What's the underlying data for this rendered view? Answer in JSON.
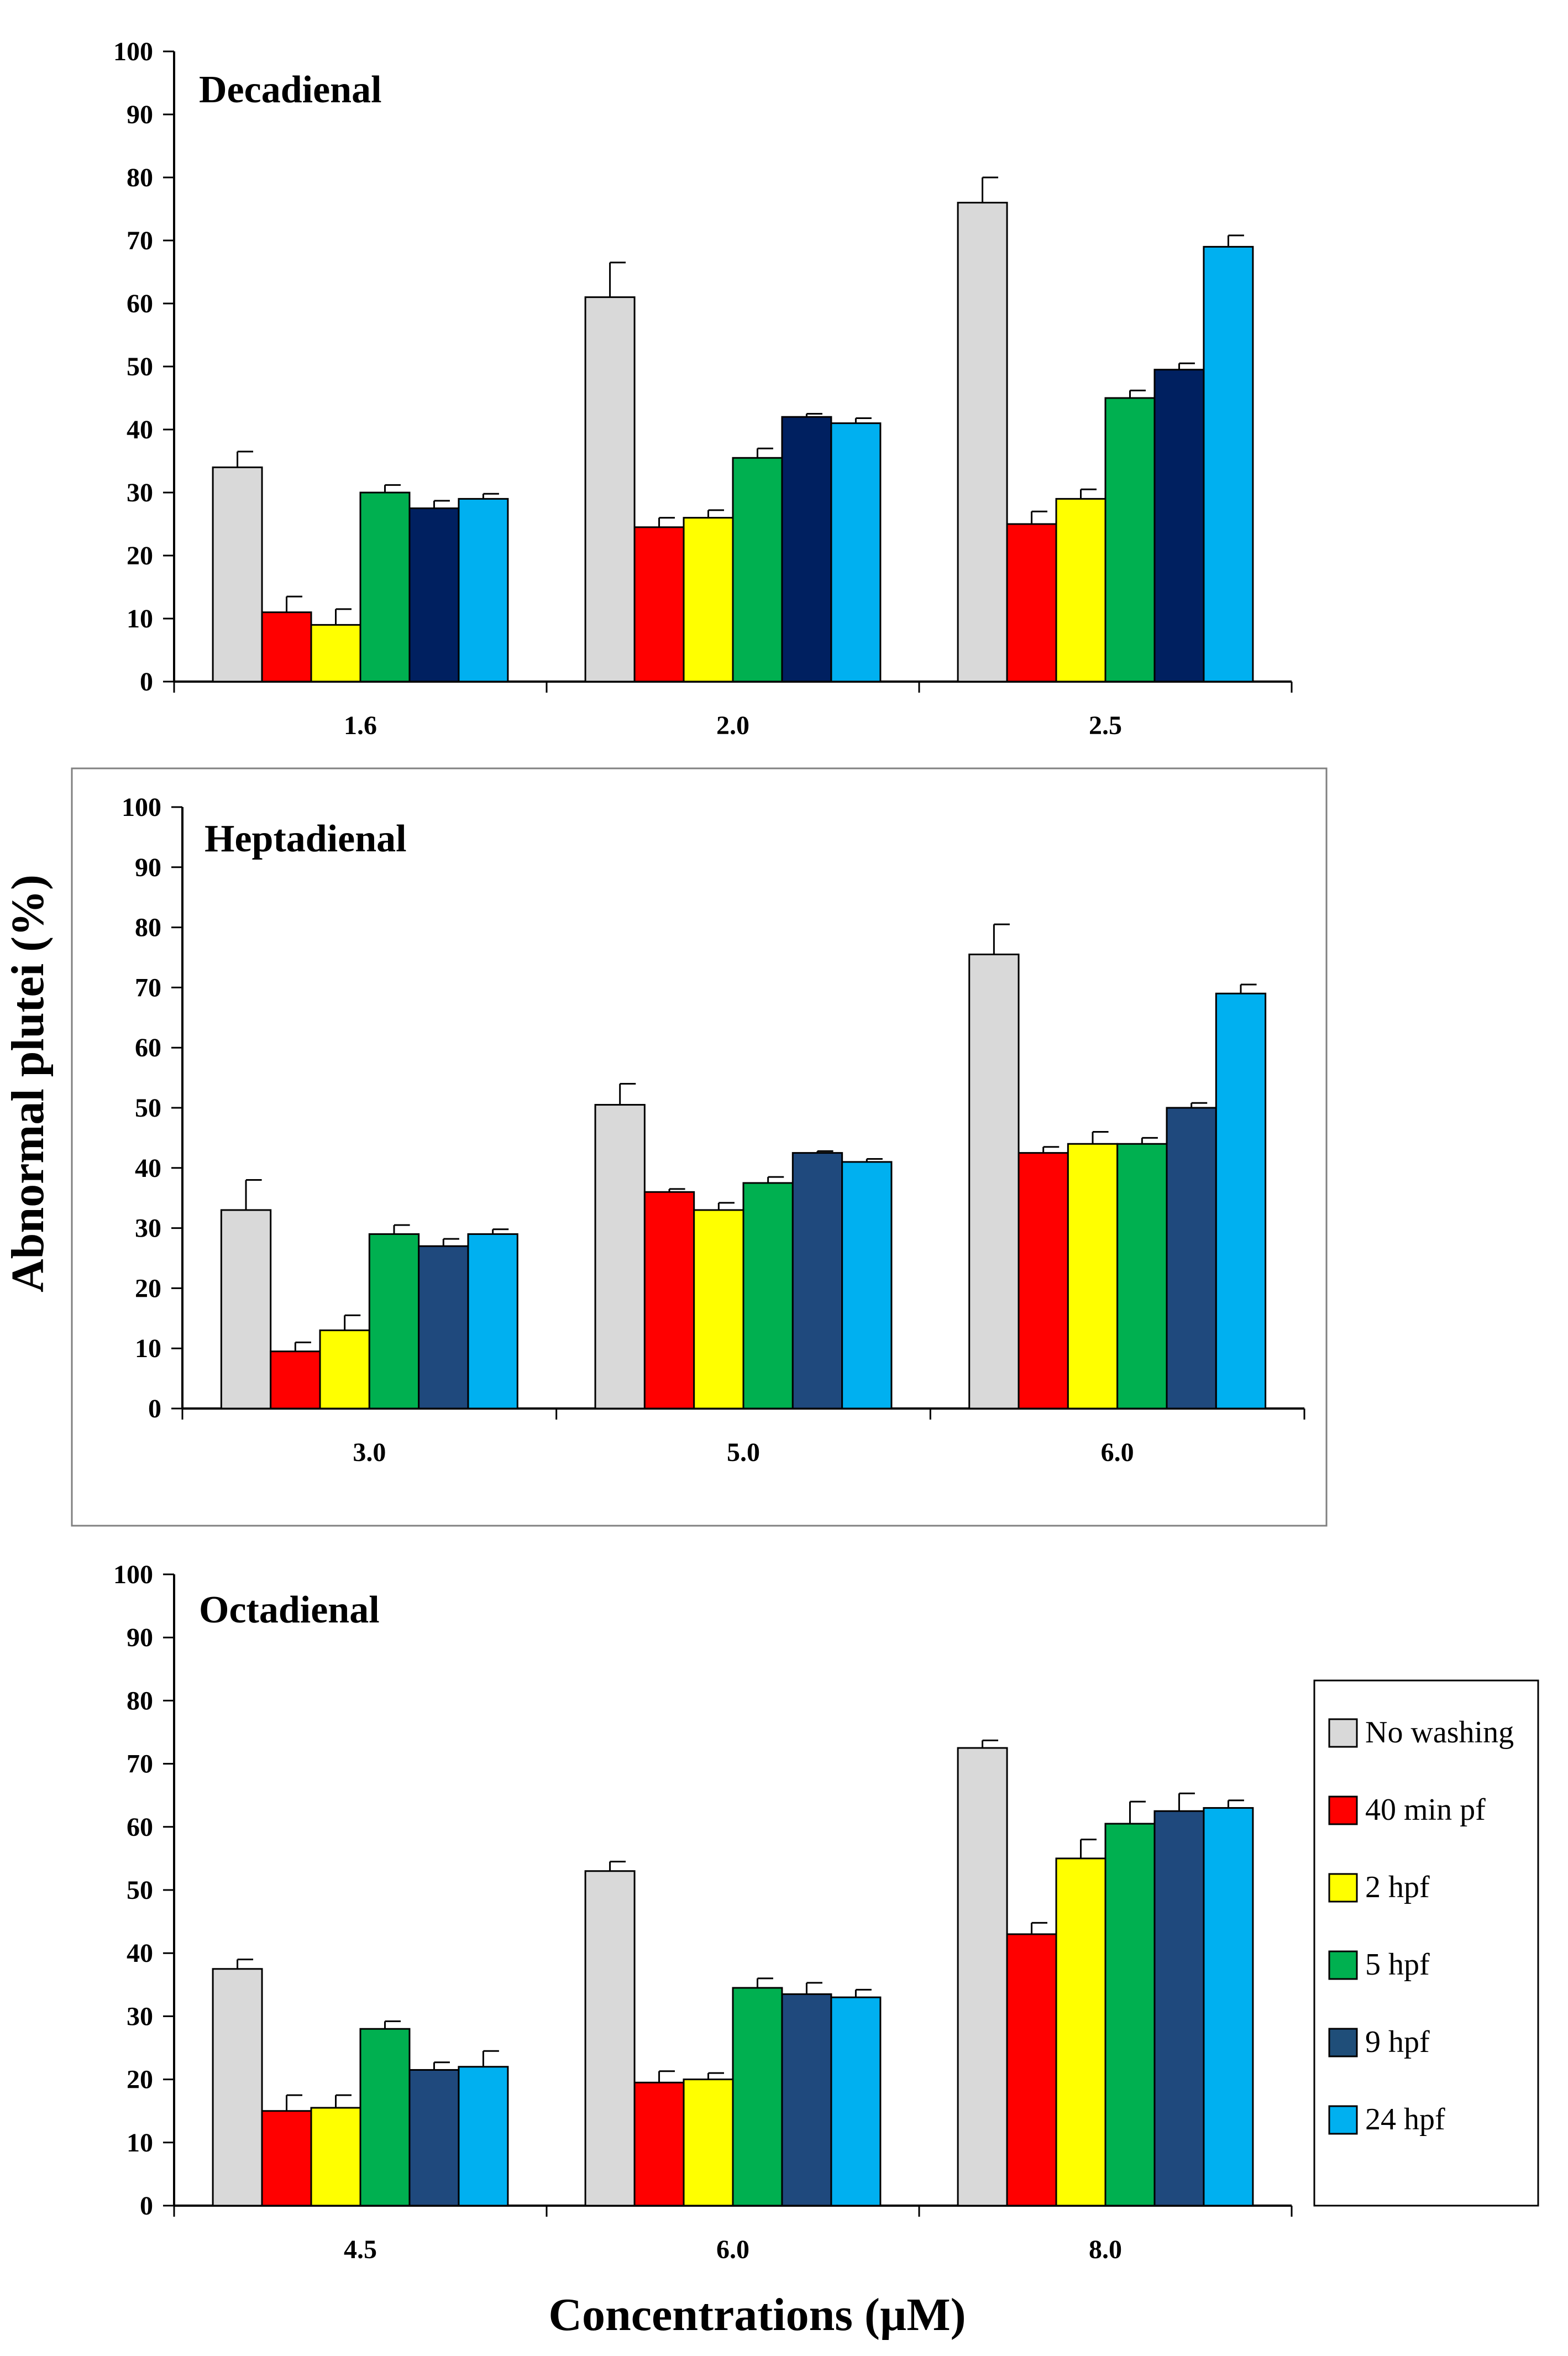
{
  "chart_data": [
    {
      "type": "bar",
      "title": "Decadienal",
      "categories": [
        "1.6",
        "2.0",
        "2.5"
      ],
      "ylim": [
        0,
        100
      ],
      "yticks": [
        0,
        10,
        20,
        30,
        40,
        50,
        60,
        70,
        80,
        90,
        100
      ],
      "error_bars": true,
      "series": [
        {
          "name": "No washing",
          "values": [
            34,
            61,
            76
          ],
          "errors": [
            2.5,
            5.5,
            4
          ]
        },
        {
          "name": "40 min pf",
          "values": [
            11,
            24.5,
            25
          ],
          "errors": [
            2.5,
            1.5,
            2
          ]
        },
        {
          "name": "2 hpf",
          "values": [
            9,
            26,
            29
          ],
          "errors": [
            2.5,
            1.2,
            1.5
          ]
        },
        {
          "name": "5 hpf",
          "values": [
            30,
            35.5,
            45
          ],
          "errors": [
            1.2,
            1.5,
            1.2
          ]
        },
        {
          "name": "9 hpf",
          "values": [
            27.5,
            42,
            49.5
          ],
          "errors": [
            1.2,
            0.5,
            1
          ]
        },
        {
          "name": "24 hpf",
          "values": [
            29,
            41,
            69
          ],
          "errors": [
            0.8,
            0.8,
            1.8
          ]
        }
      ]
    },
    {
      "type": "bar",
      "title": "Heptadienal",
      "categories": [
        "3.0",
        "5.0",
        "6.0"
      ],
      "ylim": [
        0,
        100
      ],
      "yticks": [
        0,
        10,
        20,
        30,
        40,
        50,
        60,
        70,
        80,
        90,
        100
      ],
      "error_bars": true,
      "series": [
        {
          "name": "No washing",
          "values": [
            33,
            50.5,
            75.5
          ],
          "errors": [
            5,
            3.5,
            5
          ]
        },
        {
          "name": "40 min pf",
          "values": [
            9.5,
            36,
            42.5
          ],
          "errors": [
            1.5,
            0.5,
            1
          ]
        },
        {
          "name": "2 hpf",
          "values": [
            13,
            33,
            44
          ],
          "errors": [
            2.5,
            1.2,
            2
          ]
        },
        {
          "name": "5 hpf",
          "values": [
            29,
            37.5,
            44
          ],
          "errors": [
            1.5,
            1,
            1
          ]
        },
        {
          "name": "9 hpf",
          "values": [
            27,
            42.5,
            50
          ],
          "errors": [
            1.2,
            0.3,
            0.8
          ]
        },
        {
          "name": "24 hpf",
          "values": [
            29,
            41,
            69
          ],
          "errors": [
            0.8,
            0.5,
            1.5
          ]
        }
      ]
    },
    {
      "type": "bar",
      "title": "Octadienal",
      "categories": [
        "4.5",
        "6.0",
        "8.0"
      ],
      "ylim": [
        0,
        100
      ],
      "yticks": [
        0,
        10,
        20,
        30,
        40,
        50,
        60,
        70,
        80,
        90,
        100
      ],
      "xlabel": "Concentrations (µM)",
      "error_bars": true,
      "series": [
        {
          "name": "No washing",
          "values": [
            37.5,
            53,
            72.5
          ],
          "errors": [
            1.5,
            1.5,
            1.2
          ]
        },
        {
          "name": "40 min pf",
          "values": [
            15,
            19.5,
            43
          ],
          "errors": [
            2.5,
            1.8,
            1.8
          ]
        },
        {
          "name": "2 hpf",
          "values": [
            15.5,
            20,
            55
          ],
          "errors": [
            2,
            1,
            3
          ]
        },
        {
          "name": "5 hpf",
          "values": [
            28,
            34.5,
            60.5
          ],
          "errors": [
            1.2,
            1.5,
            3.5
          ]
        },
        {
          "name": "9 hpf",
          "values": [
            21.5,
            33.5,
            62.5
          ],
          "errors": [
            1.2,
            1.8,
            2.8
          ]
        },
        {
          "name": "24 hpf",
          "values": [
            22,
            33,
            63
          ],
          "errors": [
            2.5,
            1.2,
            1.2
          ]
        }
      ]
    }
  ],
  "ylabel": "Abnormal plutei (%)",
  "legend": {
    "placement": "right",
    "items": [
      {
        "label": "No washing",
        "color": "#d9d9d9"
      },
      {
        "label": "40 min pf",
        "color": "#ff0000"
      },
      {
        "label": "2 hpf",
        "color": "#ffff00"
      },
      {
        "label": "5 hpf",
        "color": "#00b050"
      },
      {
        "label": "9 hpf",
        "color": "#1f4e79"
      },
      {
        "label": "24 hpf",
        "color": "#00b0f0"
      }
    ]
  },
  "series_colors": {
    "panel_1_9hpf": "#002060",
    "panel_2_9hpf": "#1f497d",
    "panel_3_9hpf": "#1f497d"
  }
}
